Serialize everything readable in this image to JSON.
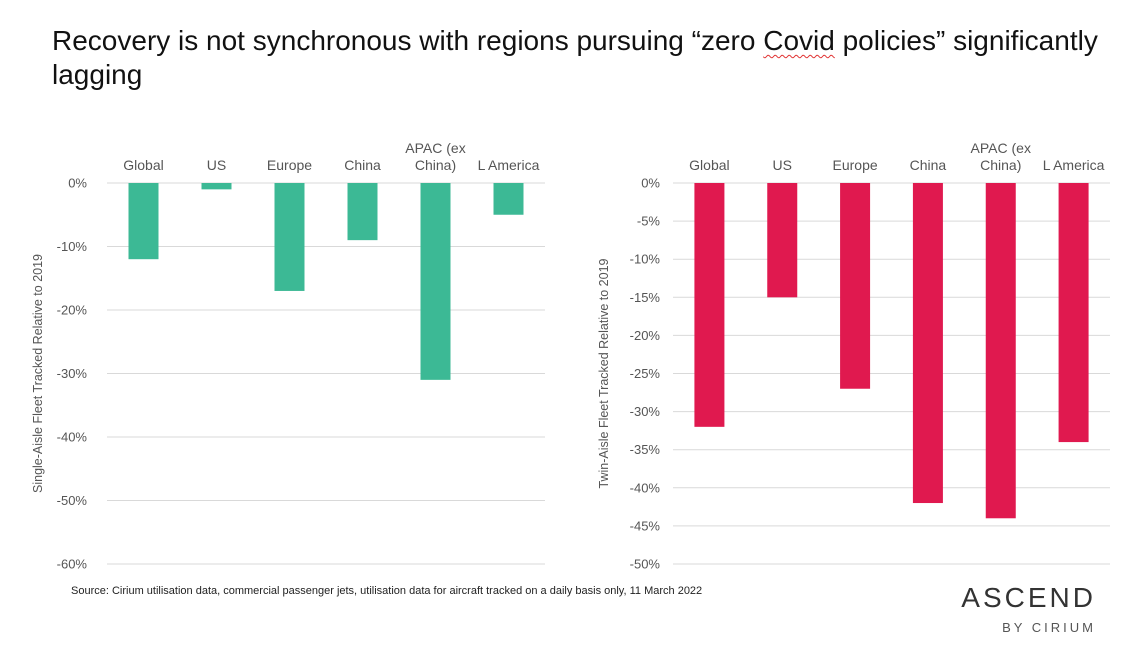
{
  "title": {
    "before": "Recovery is not synchronous with regions pursuing “zero ",
    "highlight": "Covid",
    "after": " policies” significantly lagging"
  },
  "source": "Source: Cirium utilisation data, commercial passenger jets, utilisation data for aircraft tracked on a daily basis only, 11 March 2022",
  "logo": {
    "main": "ASCEND",
    "sub": "BY CIRIUM"
  },
  "colors": {
    "single_aisle": "#3cb995",
    "twin_aisle": "#e0194f",
    "grid": "#d9d9d9"
  },
  "chart_data": [
    {
      "type": "bar",
      "categories": [
        "Global",
        "US",
        "Europe",
        "China",
        "APAC (ex China)",
        "L America"
      ],
      "category_lines": [
        [
          "Global"
        ],
        [
          "US"
        ],
        [
          "Europe"
        ],
        [
          "China"
        ],
        [
          "APAC (ex",
          "China)"
        ],
        [
          "L America"
        ]
      ],
      "values": [
        -12,
        -1,
        -17,
        -9,
        -31,
        -5
      ],
      "ylabel": "Single-Aisle Fleet Tracked Relative to 2019",
      "ylim": [
        -60,
        0
      ],
      "yticks": [
        0,
        -10,
        -20,
        -30,
        -40,
        -50,
        -60
      ],
      "ytick_labels": [
        "0%",
        "-10%",
        "-20%",
        "-30%",
        "-40%",
        "-50%",
        "-60%"
      ],
      "color": "#3cb995",
      "grid": true,
      "category_axis": "top"
    },
    {
      "type": "bar",
      "categories": [
        "Global",
        "US",
        "Europe",
        "China",
        "APAC (ex China)",
        "L America"
      ],
      "category_lines": [
        [
          "Global"
        ],
        [
          "US"
        ],
        [
          "Europe"
        ],
        [
          "China"
        ],
        [
          "APAC (ex",
          "China)"
        ],
        [
          "L America"
        ]
      ],
      "values": [
        -32,
        -15,
        -27,
        -42,
        -44,
        -34
      ],
      "ylabel": "Twin-Aisle Fleet Tracked Relative to 2019",
      "ylim": [
        -50,
        0
      ],
      "yticks": [
        0,
        -5,
        -10,
        -15,
        -20,
        -25,
        -30,
        -35,
        -40,
        -45,
        -50
      ],
      "ytick_labels": [
        "0%",
        "-5%",
        "-10%",
        "-15%",
        "-20%",
        "-25%",
        "-30%",
        "-35%",
        "-40%",
        "-45%",
        "-50%"
      ],
      "color": "#e0194f",
      "grid": true,
      "category_axis": "top"
    }
  ]
}
